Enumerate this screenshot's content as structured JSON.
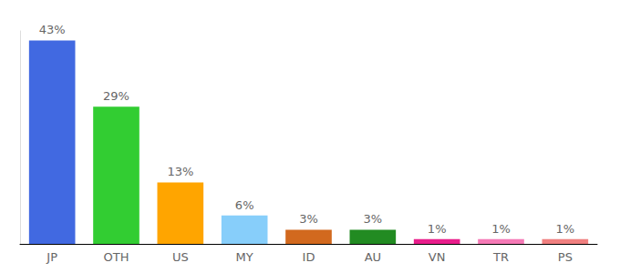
{
  "chart_data": {
    "type": "bar",
    "categories": [
      "JP",
      "OTH",
      "US",
      "MY",
      "ID",
      "AU",
      "VN",
      "TR",
      "PS"
    ],
    "values": [
      43,
      29,
      13,
      6,
      3,
      3,
      1,
      1,
      1
    ],
    "value_labels": [
      "43%",
      "29%",
      "13%",
      "6%",
      "3%",
      "3%",
      "1%",
      "1%",
      "1%"
    ],
    "colors": [
      "#4169e1",
      "#32cd32",
      "#ffa500",
      "#87cefa",
      "#d2691e",
      "#228b22",
      "#e91e8c",
      "#f57ab6",
      "#f08080"
    ],
    "ylim": [
      0,
      45
    ],
    "grid": false,
    "data_labels": true,
    "tick_labels": "x"
  }
}
